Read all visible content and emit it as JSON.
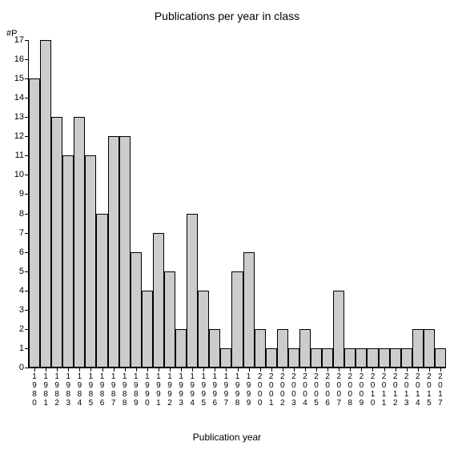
{
  "chart": {
    "type": "bar",
    "title": "Publications per year in class",
    "ylabel": "#P",
    "xlabel": "Publication year",
    "title_fontsize": 14,
    "label_fontsize": 12,
    "tick_fontsize": 11,
    "background_color": "#ffffff",
    "bar_color": "#cccccc",
    "bar_border_color": "#000000",
    "axis_color": "#000000",
    "ylim": [
      0,
      17
    ],
    "ytick_step": 1,
    "bar_width": 1.0,
    "categories": [
      "1980",
      "1981",
      "1982",
      "1983",
      "1984",
      "1985",
      "1986",
      "1987",
      "1988",
      "1989",
      "1990",
      "1991",
      "1992",
      "1993",
      "1994",
      "1995",
      "1996",
      "1997",
      "1998",
      "1999",
      "2000",
      "2001",
      "2002",
      "2003",
      "2004",
      "2005",
      "2006",
      "2007",
      "2008",
      "2009",
      "2010",
      "2011",
      "2012",
      "2013",
      "2014",
      "2015",
      "2017"
    ],
    "values": [
      15,
      17,
      13,
      11,
      13,
      11,
      8,
      12,
      12,
      6,
      4,
      7,
      5,
      2,
      8,
      4,
      2,
      1,
      5,
      6,
      2,
      1,
      2,
      1,
      2,
      1,
      1,
      4,
      1,
      1,
      1,
      1,
      1,
      1,
      2,
      2,
      1
    ]
  }
}
